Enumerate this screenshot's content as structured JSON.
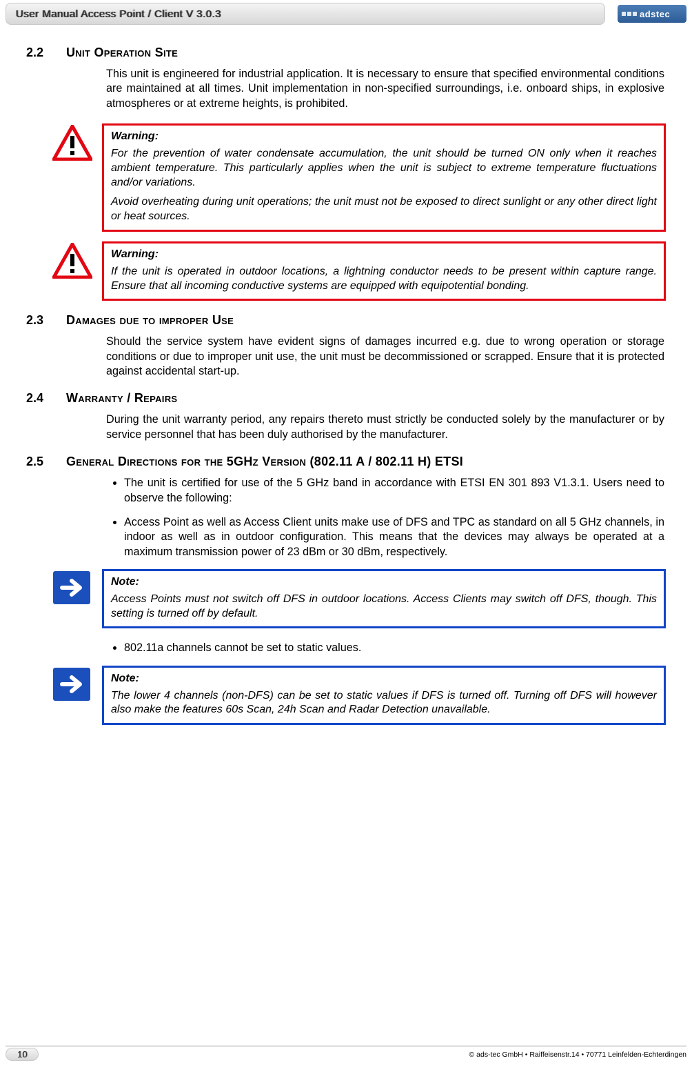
{
  "header": {
    "title": "User Manual Access Point / Client V 3.0.3",
    "logo_text": "adstec"
  },
  "section_22": {
    "number": "2.2",
    "title": "Unit Operation Site",
    "body": "This unit is engineered for industrial application. It is necessary to ensure that specified environmental conditions are maintained at all times. Unit implementation in non-specified surroundings, i.e. onboard ships, in explosive atmospheres or at extreme heights, is prohibited."
  },
  "warning1": {
    "title": "Warning:",
    "p1": "For the prevention of water condensate accumulation, the unit should be turned ON only when it reaches ambient temperature. This particularly applies when the unit is subject to extreme temperature fluctuations and/or variations.",
    "p2": "Avoid overheating during unit operations; the unit must not be exposed to direct sunlight or any other direct light or heat sources."
  },
  "warning2": {
    "title": "Warning:",
    "p1": "If the unit is operated in outdoor locations, a lightning conductor needs to be present within capture range. Ensure that all incoming conductive systems are equipped with equipotential bonding."
  },
  "section_23": {
    "number": "2.3",
    "title": "Damages due to improper Use",
    "body": "Should the service system have evident signs of damages incurred e.g. due to wrong operation or storage conditions or due to improper unit use, the unit must be decommissioned or scrapped. Ensure that it is protected against accidental start-up."
  },
  "section_24": {
    "number": "2.4",
    "title": "Warranty / Repairs",
    "body": "During the unit warranty period, any repairs thereto must strictly be conducted solely by the manufacturer or by service personnel that has been duly authorised by the manufacturer."
  },
  "section_25": {
    "number": "2.5",
    "title": "General Directions for the 5GHz Version (802.11 A / 802.11 H) ETSI",
    "bullets1": [
      "The unit is certified for use of the 5 GHz band in accordance with ETSI EN 301 893 V1.3.1. Users need to observe the following:",
      "Access Point as well as Access Client units make use of DFS and TPC as standard on all 5 GHz channels, in indoor as well as in outdoor configuration. This means that the devices may always be operated at a maximum transmission power of 23 dBm or 30 dBm, respectively."
    ],
    "bullets2": [
      "802.11a channels cannot be set to static values."
    ]
  },
  "note1": {
    "title": "Note:",
    "p1": "Access Points must not switch off DFS in outdoor locations. Access Clients may switch off DFS, though. This setting is turned off by default."
  },
  "note2": {
    "title": "Note:",
    "p1": "The lower 4 channels (non-DFS) can be set to static values if DFS is turned off. Turning off DFS will however also make the features 60s Scan, 24h Scan and Radar Detection unavailable."
  },
  "footer": {
    "page": "10",
    "copyright": "© ads-tec GmbH • Raiffeisenstr.14 • 70771 Leinfelden-Echterdingen"
  },
  "colors": {
    "warning_border": "#e30613",
    "note_border": "#1246c8",
    "note_bg": "#1b4fbc"
  }
}
